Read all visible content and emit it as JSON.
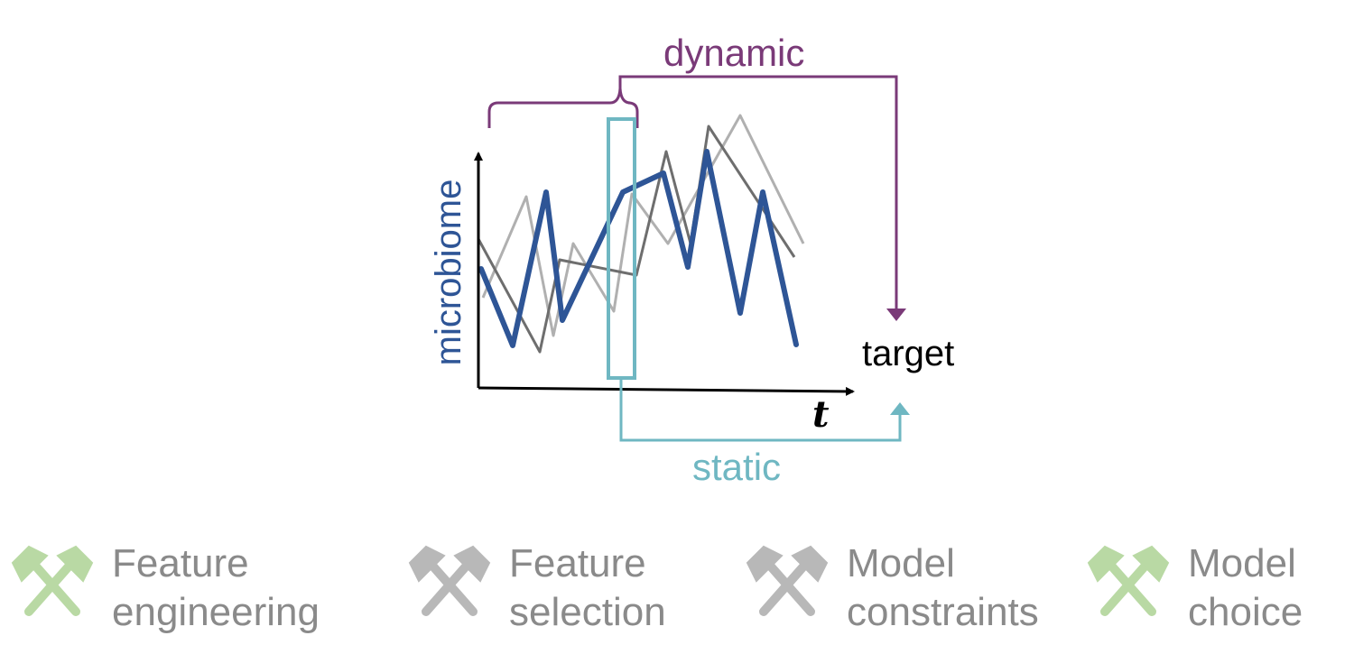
{
  "diagram": {
    "dynamic_label": "dynamic",
    "static_label": "static",
    "target_label": "target",
    "y_axis_label": "microbiome",
    "x_axis_label": "t"
  },
  "colors": {
    "dynamic": "#7a3a78",
    "static": "#6fb7c2",
    "series_main": "#2e5596",
    "series_grey_dark": "#6e6e6e",
    "series_grey_light": "#b0b0b0",
    "tool_active": "#b9d9a4",
    "tool_inactive": "#b8b8b8",
    "legend_text": "#8a8a8a"
  },
  "legend": [
    {
      "line1": "Feature",
      "line2": "engineering",
      "icon": "hammer-pick-icon",
      "state": "active"
    },
    {
      "line1": "Feature",
      "line2": "selection",
      "icon": "hammer-pick-icon",
      "state": "inactive"
    },
    {
      "line1": "Model",
      "line2": "constraints",
      "icon": "hammer-pick-icon",
      "state": "inactive"
    },
    {
      "line1": "Model",
      "line2": "choice",
      "icon": "hammer-pick-icon",
      "state": "active"
    }
  ]
}
